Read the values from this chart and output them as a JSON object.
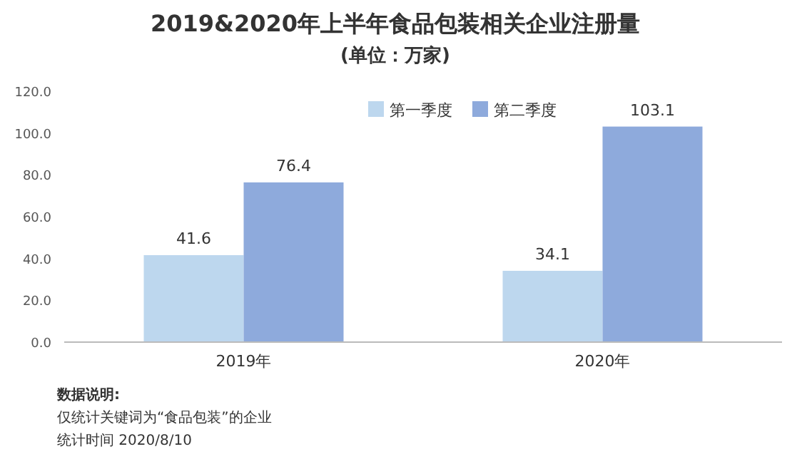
{
  "chart_data": {
    "type": "bar",
    "title": "2019&2020年上半年食品包装相关企业注册量",
    "subtitle": "(单位：万家)",
    "categories": [
      "2019年",
      "2020年"
    ],
    "series": [
      {
        "name": "第一季度",
        "color": "#bdd7ee",
        "values": [
          41.6,
          34.1
        ]
      },
      {
        "name": "第二季度",
        "color": "#8eaadc",
        "values": [
          76.4,
          103.1
        ]
      }
    ],
    "ylim": [
      0,
      120
    ],
    "yticks": [
      {
        "value": 0,
        "label": "0.0"
      },
      {
        "value": 20,
        "label": "20.0"
      },
      {
        "value": 40,
        "label": "40.0"
      },
      {
        "value": 60,
        "label": "60.0"
      },
      {
        "value": 80,
        "label": "80.0"
      },
      {
        "value": 100,
        "label": "100.0"
      },
      {
        "value": 120,
        "label": "120.0"
      }
    ],
    "data_labels": true,
    "legend": "top",
    "annotations": [
      "数据说明:",
      "仅统计关键词为“食品包装”的企业",
      "统计时间 2020/8/10"
    ]
  }
}
